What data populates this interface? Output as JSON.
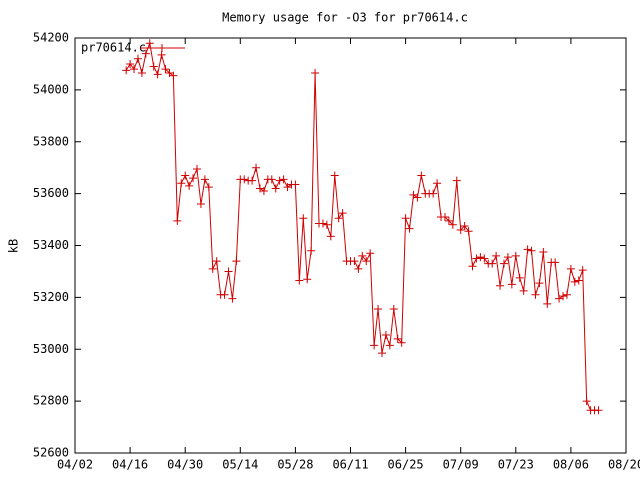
{
  "chart_data": {
    "type": "line",
    "title": "Memory usage for -O3 for pr70614.c",
    "ylabel": "kB",
    "xlim": [
      "04/02",
      "08/20"
    ],
    "xticks": [
      "04/02",
      "04/16",
      "04/30",
      "05/14",
      "05/28",
      "06/11",
      "06/25",
      "07/09",
      "07/23",
      "08/06",
      "08/20"
    ],
    "ylim": [
      52600,
      54200
    ],
    "yticks": [
      52600,
      52800,
      53000,
      53200,
      53400,
      53600,
      53800,
      54000,
      54200
    ],
    "grid": false,
    "legend": "top-left",
    "x": [
      "04/15",
      "04/16",
      "04/17",
      "04/18",
      "04/19",
      "04/20",
      "04/21",
      "04/22",
      "04/23",
      "04/24",
      "04/25",
      "04/26",
      "04/27",
      "04/28",
      "04/29",
      "04/30",
      "05/01",
      "05/02",
      "05/03",
      "05/04",
      "05/05",
      "05/06",
      "05/07",
      "05/08",
      "05/09",
      "05/10",
      "05/11",
      "05/12",
      "05/13",
      "05/14",
      "05/15",
      "05/16",
      "05/17",
      "05/18",
      "05/19",
      "05/20",
      "05/21",
      "05/22",
      "05/23",
      "05/24",
      "05/25",
      "05/26",
      "05/27",
      "05/28",
      "05/29",
      "05/30",
      "05/31",
      "06/01",
      "06/02",
      "06/03",
      "06/04",
      "06/05",
      "06/06",
      "06/07",
      "06/08",
      "06/09",
      "06/10",
      "06/11",
      "06/12",
      "06/13",
      "06/14",
      "06/15",
      "06/16",
      "06/17",
      "06/18",
      "06/19",
      "06/20",
      "06/21",
      "06/22",
      "06/23",
      "06/24",
      "06/25",
      "06/26",
      "06/27",
      "06/28",
      "06/29",
      "06/30",
      "07/01",
      "07/02",
      "07/03",
      "07/04",
      "07/05",
      "07/06",
      "07/07",
      "07/08",
      "07/09",
      "07/10",
      "07/11",
      "07/12",
      "07/13",
      "07/14",
      "07/15",
      "07/16",
      "07/17",
      "07/18",
      "07/19",
      "07/20",
      "07/21",
      "07/22",
      "07/23",
      "07/24",
      "07/25",
      "07/26",
      "07/27",
      "07/28",
      "07/29",
      "07/30",
      "07/31",
      "08/01",
      "08/02",
      "08/03",
      "08/04",
      "08/05",
      "08/06",
      "08/07",
      "08/08",
      "08/09",
      "08/10",
      "08/11",
      "08/12",
      "08/13"
    ],
    "series": [
      {
        "name": "pr70614.c",
        "color": "#d00000",
        "values": [
          54075,
          54100,
          54080,
          54120,
          54065,
          54140,
          54180,
          54090,
          54060,
          54135,
          54080,
          54065,
          54055,
          53495,
          53640,
          53670,
          53630,
          53660,
          53695,
          53560,
          53655,
          53625,
          53310,
          53340,
          53210,
          53210,
          53300,
          53195,
          53340,
          53655,
          53655,
          53650,
          53650,
          53700,
          53620,
          53610,
          53655,
          53655,
          53620,
          53650,
          53655,
          53625,
          53635,
          53635,
          53265,
          53505,
          53270,
          53380,
          54065,
          53485,
          53485,
          53480,
          53435,
          53670,
          53505,
          53525,
          53340,
          53340,
          53340,
          53310,
          53360,
          53340,
          53370,
          53015,
          53155,
          52985,
          53055,
          53015,
          53155,
          53040,
          53025,
          53505,
          53465,
          53595,
          53585,
          53670,
          53600,
          53600,
          53600,
          53640,
          53510,
          53510,
          53495,
          53480,
          53650,
          53460,
          53475,
          53455,
          53320,
          53350,
          53355,
          53350,
          53330,
          53330,
          53360,
          53245,
          53330,
          53355,
          53250,
          53360,
          53275,
          53225,
          53385,
          53380,
          53210,
          53255,
          53375,
          53175,
          53335,
          53335,
          53195,
          53205,
          53210,
          53310,
          53260,
          53265,
          53305,
          52800,
          52765,
          52765,
          52765
        ]
      }
    ]
  }
}
